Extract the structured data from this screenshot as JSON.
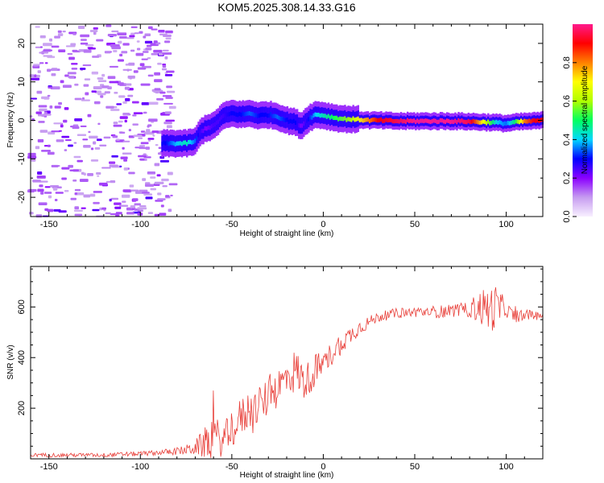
{
  "title": "KOM5.2025.308.14.33.G16",
  "chart_data": [
    {
      "type": "heatmap",
      "title": "KOM5.2025.308.14.33.G16",
      "xlabel": "Height of straight line (km)",
      "ylabel": "Frequency (Hz)",
      "xlim": [
        -160,
        120
      ],
      "ylim": [
        -25,
        25
      ],
      "x_ticks": [
        -150,
        -100,
        -50,
        0,
        50,
        100
      ],
      "y_ticks": [
        -20,
        -10,
        0,
        10,
        20
      ],
      "colorbar": {
        "label": "Normalized spectral amplitude",
        "range": [
          0,
          1
        ],
        "ticks": [
          "0.0",
          "0.2",
          "0.4",
          "0.6",
          "0.8"
        ],
        "colormap": [
          "#f8f0ff",
          "#c69cf0",
          "#8b00ff",
          "#0000ff",
          "#00d8ff",
          "#00ff60",
          "#b0ff00",
          "#ffff00",
          "#ff8000",
          "#ff0000",
          "#ff1a8c"
        ]
      },
      "ridge": {
        "x": [
          -86,
          -80,
          -75,
          -70,
          -67,
          -64,
          -60,
          -55,
          -50,
          -45,
          -40,
          -35,
          -30,
          -25,
          -20,
          -15,
          -12,
          -8,
          -4,
          0,
          5,
          10,
          15,
          20,
          25,
          30,
          40,
          50,
          60,
          70,
          80,
          90,
          95,
          100,
          105,
          110,
          115,
          120
        ],
        "freq_hz": [
          -6,
          -6,
          -6,
          -5.5,
          -3,
          -2,
          -1.5,
          1,
          1.8,
          1.5,
          1.8,
          1.2,
          1.5,
          1,
          0,
          -0.5,
          -1.5,
          0.5,
          1.5,
          1.3,
          0.8,
          0.4,
          0.3,
          0.2,
          0,
          0,
          -0.2,
          -0.2,
          -0.2,
          -0.2,
          -0.3,
          -0.5,
          -0.6,
          -0.8,
          -0.5,
          -0.3,
          -0.2,
          0
        ],
        "amplitude": [
          0.3,
          0.4,
          0.45,
          0.35,
          0.25,
          0.2,
          0.25,
          0.25,
          0.3,
          0.3,
          0.35,
          0.3,
          0.3,
          0.35,
          0.3,
          0.3,
          0.2,
          0.3,
          0.4,
          0.45,
          0.5,
          0.55,
          0.6,
          0.7,
          0.8,
          0.9,
          0.95,
          1,
          1,
          1,
          0.95,
          0.6,
          0.4,
          0.35,
          0.5,
          0.8,
          0.9,
          0.9
        ]
      }
    },
    {
      "type": "line",
      "xlabel": "Height of straight line (km)",
      "ylabel": "SNR (v/v)",
      "xlim": [
        -160,
        120
      ],
      "ylim": [
        0,
        760
      ],
      "x_ticks": [
        -150,
        -100,
        -50,
        0,
        50,
        100
      ],
      "y_ticks": [
        200,
        400,
        600
      ],
      "series": [
        {
          "name": "SNR",
          "color": "#e8403a",
          "x": [
            -160,
            -140,
            -120,
            -100,
            -90,
            -80,
            -75,
            -70,
            -65,
            -60,
            -55,
            -50,
            -45,
            -40,
            -35,
            -30,
            -25,
            -20,
            -15,
            -10,
            -5,
            0,
            5,
            10,
            15,
            20,
            25,
            30,
            40,
            50,
            60,
            70,
            80,
            85,
            90,
            95,
            100,
            105,
            110,
            115,
            120
          ],
          "y": [
            15,
            15,
            15,
            20,
            25,
            30,
            35,
            45,
            60,
            90,
            70,
            120,
            160,
            200,
            200,
            250,
            280,
            320,
            350,
            300,
            350,
            370,
            420,
            460,
            490,
            520,
            540,
            560,
            575,
            580,
            580,
            585,
            590,
            600,
            590,
            600,
            590,
            560,
            570,
            565,
            570
          ],
          "noise": [
            8,
            8,
            8,
            10,
            10,
            15,
            20,
            30,
            60,
            90,
            60,
            80,
            80,
            80,
            70,
            80,
            80,
            80,
            90,
            70,
            70,
            50,
            50,
            45,
            35,
            30,
            25,
            20,
            20,
            20,
            25,
            25,
            30,
            70,
            90,
            90,
            30,
            25,
            20,
            20,
            15
          ]
        }
      ]
    }
  ]
}
